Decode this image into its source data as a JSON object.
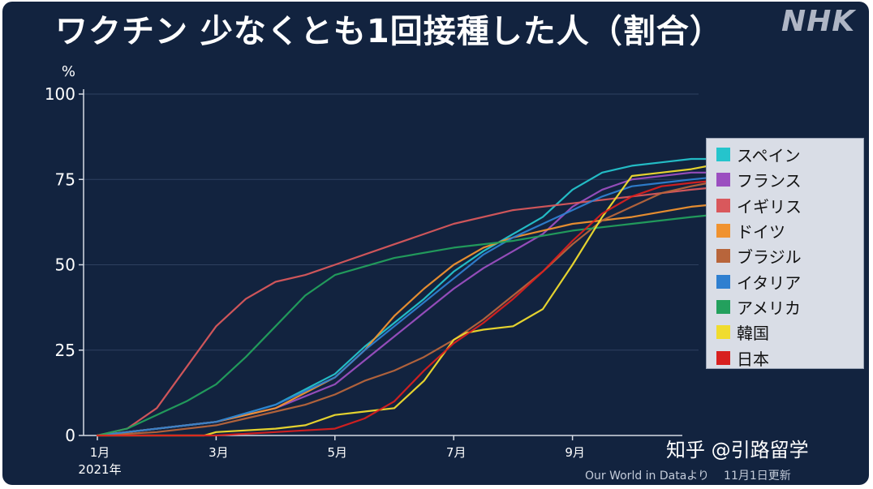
{
  "header": {
    "title": "ワクチン 少なくとも1回接種した人（割合）",
    "logo": "NHK"
  },
  "chart_data": {
    "type": "line",
    "title": "ワクチン 少なくとも1回接種した人（割合）",
    "ylabel": "%",
    "ylim": [
      0,
      100
    ],
    "yticks": [
      0,
      25,
      50,
      75,
      100
    ],
    "ytick_labels": [
      "0",
      "25",
      "50",
      "75",
      "100"
    ],
    "xlim": [
      0,
      10.6
    ],
    "xticks": [
      0,
      2,
      4,
      6,
      8
    ],
    "xtick_labels": [
      "1月",
      "3月",
      "5月",
      "7月",
      "9月"
    ],
    "x_sublabel": "2021年",
    "x_unit": "months since 2021-01-01",
    "grid": true,
    "legend_position": "right",
    "series": [
      {
        "name": "スペイン",
        "color": "#25c4cc",
        "x": [
          0,
          1,
          2,
          3,
          4,
          4.5,
          5,
          5.5,
          6,
          6.5,
          7,
          7.5,
          8,
          8.5,
          9,
          9.5,
          10,
          10.5
        ],
        "y": [
          0,
          2,
          4,
          9,
          18,
          26,
          33,
          40,
          48,
          54,
          59,
          64,
          72,
          77,
          79,
          80,
          81,
          81
        ]
      },
      {
        "name": "フランス",
        "color": "#9b4fc0",
        "x": [
          0,
          1,
          2,
          3,
          4,
          4.5,
          5,
          5.5,
          6,
          6.5,
          7,
          7.5,
          8,
          8.5,
          9,
          9.5,
          10,
          10.5
        ],
        "y": [
          0,
          2,
          4,
          8,
          15,
          22,
          29,
          36,
          43,
          49,
          54,
          59,
          67,
          72,
          75,
          76,
          77,
          77
        ]
      },
      {
        "name": "イギリス",
        "color": "#d9585c",
        "x": [
          0,
          0.5,
          1,
          1.5,
          2,
          2.5,
          3,
          3.5,
          4,
          5,
          6,
          7,
          8,
          9,
          10,
          10.6
        ],
        "y": [
          0,
          2,
          8,
          20,
          32,
          40,
          45,
          47,
          50,
          56,
          62,
          66,
          68,
          70,
          72,
          73
        ]
      },
      {
        "name": "ドイツ",
        "color": "#f0922f",
        "x": [
          0,
          1,
          2,
          3,
          4,
          4.5,
          5,
          5.5,
          6,
          6.5,
          7,
          7.5,
          8,
          9,
          10,
          10.6
        ],
        "y": [
          0,
          2,
          4,
          8,
          17,
          25,
          35,
          43,
          50,
          55,
          58,
          60,
          62,
          64,
          67,
          68
        ]
      },
      {
        "name": "ブラジル",
        "color": "#b8653b",
        "x": [
          0,
          1,
          2,
          2.5,
          3,
          3.5,
          4,
          4.5,
          5,
          5.5,
          6,
          6.5,
          7,
          7.5,
          8,
          8.5,
          9,
          9.5,
          10,
          10.6
        ],
        "y": [
          0,
          1,
          3,
          5,
          7,
          9,
          12,
          16,
          19,
          23,
          28,
          34,
          41,
          48,
          56,
          63,
          67,
          71,
          73,
          75
        ]
      },
      {
        "name": "イタリア",
        "color": "#2f7fd0",
        "x": [
          0,
          1,
          2,
          3,
          4,
          4.5,
          5,
          5.5,
          6,
          6.5,
          7,
          7.5,
          8,
          8.5,
          9,
          9.5,
          10,
          10.6
        ],
        "y": [
          0,
          2,
          4,
          9,
          17,
          25,
          32,
          39,
          46,
          53,
          58,
          62,
          66,
          70,
          73,
          74,
          75,
          76
        ]
      },
      {
        "name": "アメリカ",
        "color": "#23a05d",
        "x": [
          0,
          0.5,
          1,
          1.5,
          2,
          2.5,
          3,
          3.5,
          4,
          5,
          6,
          7,
          8,
          9,
          10,
          10.6
        ],
        "y": [
          0,
          2,
          6,
          10,
          15,
          23,
          32,
          41,
          47,
          52,
          55,
          57,
          60,
          62,
          64,
          65
        ]
      },
      {
        "name": "韓国",
        "color": "#f0dc2e",
        "x": [
          0,
          1.8,
          2,
          3,
          3.5,
          4,
          4.5,
          5,
          5.5,
          6,
          6.2,
          6.5,
          7,
          7.5,
          8,
          8.5,
          9,
          9.5,
          10,
          10.6
        ],
        "y": [
          0,
          0,
          1,
          2,
          3,
          6,
          7,
          8,
          16,
          28,
          30,
          31,
          32,
          37,
          50,
          64,
          76,
          77,
          78,
          80
        ]
      },
      {
        "name": "日本",
        "color": "#d8201f",
        "x": [
          0,
          2,
          2.5,
          3,
          3.5,
          4,
          4.5,
          5,
          5.5,
          6,
          6.5,
          7,
          7.5,
          8,
          8.5,
          9,
          9.5,
          10,
          10.6
        ],
        "y": [
          0,
          0,
          0.5,
          1,
          1.5,
          2,
          5,
          10,
          19,
          27,
          33,
          40,
          48,
          57,
          65,
          70,
          73,
          74,
          75
        ]
      }
    ]
  },
  "watermark": "知乎 @引路留学",
  "footer": {
    "source": "Our World in Dataより",
    "updated": "11月1日更新"
  },
  "colors": {
    "background": "#12233f",
    "grid": "#2e4160",
    "axis": "#d4dae4",
    "legend_bg": "#d9dde6"
  }
}
